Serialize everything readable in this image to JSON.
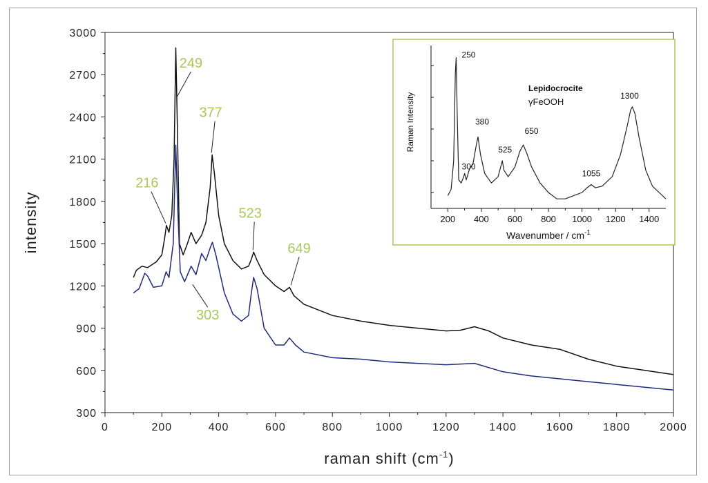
{
  "chart_data": [
    {
      "type": "line",
      "xlabel": "raman shift (cm",
      "xlabel_sup": "-1",
      "xlabel_end": ")",
      "ylabel": "intensity",
      "xlim": [
        0,
        2000
      ],
      "ylim": [
        300,
        3000
      ],
      "x_ticks": [
        "0",
        "200",
        "400",
        "600",
        "800",
        "1000",
        "1200",
        "1400",
        "1600",
        "1800",
        "2000"
      ],
      "y_ticks": [
        "300",
        "600",
        "900",
        "1200",
        "1500",
        "1800",
        "2100",
        "2400",
        "2700",
        "3000"
      ],
      "series": [
        {
          "color": "#111111",
          "points": [
            [
              100,
              1260
            ],
            [
              110,
              1310
            ],
            [
              130,
              1340
            ],
            [
              150,
              1330
            ],
            [
              180,
              1370
            ],
            [
              200,
              1420
            ],
            [
              210,
              1540
            ],
            [
              216,
              1630
            ],
            [
              225,
              1580
            ],
            [
              235,
              1700
            ],
            [
              243,
              2100
            ],
            [
              249,
              2890
            ],
            [
              255,
              2300
            ],
            [
              262,
              1500
            ],
            [
              275,
              1420
            ],
            [
              290,
              1500
            ],
            [
              303,
              1580
            ],
            [
              320,
              1500
            ],
            [
              340,
              1560
            ],
            [
              355,
              1650
            ],
            [
              370,
              1900
            ],
            [
              377,
              2130
            ],
            [
              385,
              2000
            ],
            [
              400,
              1700
            ],
            [
              420,
              1500
            ],
            [
              450,
              1380
            ],
            [
              480,
              1320
            ],
            [
              505,
              1340
            ],
            [
              515,
              1390
            ],
            [
              523,
              1440
            ],
            [
              535,
              1380
            ],
            [
              560,
              1280
            ],
            [
              600,
              1200
            ],
            [
              630,
              1160
            ],
            [
              649,
              1190
            ],
            [
              665,
              1130
            ],
            [
              700,
              1070
            ],
            [
              800,
              990
            ],
            [
              900,
              950
            ],
            [
              1000,
              920
            ],
            [
              1100,
              900
            ],
            [
              1200,
              880
            ],
            [
              1250,
              885
            ],
            [
              1300,
              910
            ],
            [
              1350,
              880
            ],
            [
              1400,
              830
            ],
            [
              1500,
              780
            ],
            [
              1600,
              750
            ],
            [
              1700,
              680
            ],
            [
              1800,
              630
            ],
            [
              1900,
              600
            ],
            [
              2000,
              570
            ]
          ]
        },
        {
          "color": "#1e2a78",
          "points": [
            [
              100,
              1150
            ],
            [
              120,
              1180
            ],
            [
              140,
              1290
            ],
            [
              150,
              1270
            ],
            [
              170,
              1190
            ],
            [
              200,
              1200
            ],
            [
              215,
              1300
            ],
            [
              225,
              1260
            ],
            [
              240,
              1500
            ],
            [
              249,
              2200
            ],
            [
              255,
              1800
            ],
            [
              265,
              1300
            ],
            [
              280,
              1230
            ],
            [
              303,
              1340
            ],
            [
              320,
              1280
            ],
            [
              340,
              1430
            ],
            [
              355,
              1380
            ],
            [
              370,
              1470
            ],
            [
              378,
              1510
            ],
            [
              390,
              1420
            ],
            [
              420,
              1150
            ],
            [
              450,
              1000
            ],
            [
              480,
              950
            ],
            [
              505,
              990
            ],
            [
              515,
              1150
            ],
            [
              523,
              1260
            ],
            [
              535,
              1180
            ],
            [
              560,
              900
            ],
            [
              600,
              780
            ],
            [
              630,
              780
            ],
            [
              649,
              830
            ],
            [
              670,
              780
            ],
            [
              700,
              730
            ],
            [
              800,
              690
            ],
            [
              900,
              680
            ],
            [
              1000,
              660
            ],
            [
              1100,
              650
            ],
            [
              1200,
              640
            ],
            [
              1300,
              650
            ],
            [
              1400,
              590
            ],
            [
              1500,
              560
            ],
            [
              1600,
              540
            ],
            [
              1700,
              520
            ],
            [
              1800,
              500
            ],
            [
              1900,
              480
            ],
            [
              2000,
              460
            ]
          ]
        }
      ],
      "annotations": [
        {
          "text": "216",
          "x": 216,
          "y": 1630
        },
        {
          "text": "249",
          "x": 249,
          "y": 2530
        },
        {
          "text": "377",
          "x": 377,
          "y": 2130
        },
        {
          "text": "523",
          "x": 523,
          "y": 1440
        },
        {
          "text": "649",
          "x": 649,
          "y": 1190
        },
        {
          "text": "303",
          "x": 303,
          "y": 1230
        }
      ]
    },
    {
      "type": "line",
      "title": "Lepidocrocite",
      "subtitle": "γFeOOH",
      "xlabel": "Wavenumber / cm",
      "xlabel_sup": "-1",
      "ylabel": "Raman Intensity",
      "xlim": [
        100,
        1500
      ],
      "ylim": [
        0,
        100
      ],
      "x_ticks": [
        "200",
        "400",
        "600",
        "800",
        "1000",
        "1200",
        "1400"
      ],
      "series": [
        {
          "color": "#222222",
          "points": [
            [
              200,
              8
            ],
            [
              220,
              12
            ],
            [
              235,
              30
            ],
            [
              245,
              85
            ],
            [
              250,
              95
            ],
            [
              256,
              60
            ],
            [
              265,
              18
            ],
            [
              280,
              16
            ],
            [
              295,
              20
            ],
            [
              300,
              22
            ],
            [
              310,
              18
            ],
            [
              330,
              25
            ],
            [
              350,
              28
            ],
            [
              370,
              40
            ],
            [
              380,
              45
            ],
            [
              395,
              34
            ],
            [
              420,
              22
            ],
            [
              460,
              16
            ],
            [
              500,
              20
            ],
            [
              515,
              26
            ],
            [
              525,
              30
            ],
            [
              535,
              24
            ],
            [
              560,
              20
            ],
            [
              600,
              26
            ],
            [
              630,
              36
            ],
            [
              650,
              40
            ],
            [
              670,
              35
            ],
            [
              700,
              26
            ],
            [
              750,
              16
            ],
            [
              800,
              10
            ],
            [
              850,
              6
            ],
            [
              900,
              6
            ],
            [
              950,
              8
            ],
            [
              1000,
              10
            ],
            [
              1030,
              13
            ],
            [
              1055,
              15
            ],
            [
              1080,
              13
            ],
            [
              1120,
              14
            ],
            [
              1180,
              20
            ],
            [
              1230,
              34
            ],
            [
              1270,
              52
            ],
            [
              1290,
              62
            ],
            [
              1300,
              64
            ],
            [
              1315,
              60
            ],
            [
              1340,
              45
            ],
            [
              1380,
              24
            ],
            [
              1420,
              14
            ],
            [
              1460,
              10
            ],
            [
              1500,
              6
            ]
          ]
        }
      ],
      "annotations": [
        {
          "text": "250",
          "x": 250,
          "y": 95
        },
        {
          "text": "300",
          "x": 300,
          "y": 22
        },
        {
          "text": "380",
          "x": 380,
          "y": 45
        },
        {
          "text": "525",
          "x": 525,
          "y": 30
        },
        {
          "text": "650",
          "x": 650,
          "y": 40
        },
        {
          "text": "1055",
          "x": 1055,
          "y": 15
        },
        {
          "text": "1300",
          "x": 1300,
          "y": 64
        }
      ]
    }
  ],
  "colors": {
    "annotation": "#a8c85a",
    "inset_border": "#a8c85a"
  }
}
